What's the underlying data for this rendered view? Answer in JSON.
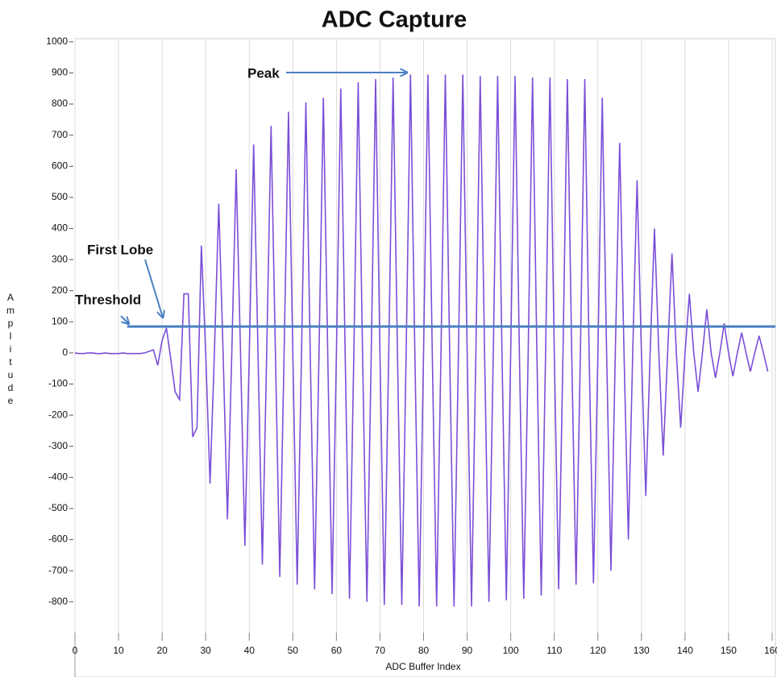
{
  "chart_data": {
    "type": "line",
    "title": "ADC Capture",
    "x_label": "ADC Buffer Index",
    "y_label": "Amplitude",
    "color": "#7b4fd8",
    "x": [
      0,
      1,
      2,
      3,
      4,
      5,
      6,
      7,
      8,
      9,
      10,
      11,
      12,
      13,
      14,
      15,
      16,
      17,
      18,
      19,
      20,
      21,
      22,
      23,
      24,
      25,
      26,
      27,
      28,
      29,
      30,
      31,
      32,
      33,
      34,
      35,
      36,
      37,
      38,
      39,
      40,
      41,
      42,
      43,
      44,
      45,
      46,
      47,
      48,
      49,
      50,
      51,
      52,
      53,
      54,
      55,
      56,
      57,
      58,
      59,
      60,
      61,
      62,
      63,
      64,
      65,
      66,
      67,
      68,
      69,
      70,
      71,
      72,
      73,
      74,
      75,
      76,
      77,
      78,
      79,
      80,
      81,
      82,
      83,
      84,
      85,
      86,
      87,
      88,
      89,
      90,
      91,
      92,
      93,
      94,
      95,
      96,
      97,
      98,
      99,
      100,
      101,
      102,
      103,
      104,
      105,
      106,
      107,
      108,
      109,
      110,
      111,
      112,
      113,
      114,
      115,
      116,
      117,
      118,
      119,
      120,
      121,
      122,
      123,
      124,
      125,
      126,
      127,
      128,
      129,
      130,
      131,
      132,
      133,
      134,
      135,
      136,
      137,
      138,
      139,
      140,
      141,
      142,
      143,
      144,
      145,
      146,
      147,
      148,
      149,
      150,
      151,
      152,
      153,
      154,
      155,
      156,
      157,
      158,
      159
    ],
    "values": [
      0,
      -2,
      -2,
      0,
      0,
      -2,
      -2,
      0,
      -2,
      -2,
      -2,
      0,
      -2,
      -2,
      -2,
      -2,
      0,
      5,
      10,
      -40,
      40,
      80,
      -20,
      -125,
      -150,
      190,
      190,
      -270,
      -240,
      345,
      0,
      -420,
      0,
      480,
      0,
      -535,
      0,
      590,
      0,
      -620,
      0,
      670,
      0,
      -680,
      0,
      730,
      0,
      -720,
      0,
      775,
      0,
      -745,
      0,
      805,
      0,
      -760,
      0,
      820,
      0,
      -775,
      0,
      850,
      0,
      -790,
      0,
      870,
      0,
      -800,
      0,
      880,
      0,
      -810,
      0,
      885,
      0,
      -810,
      0,
      895,
      0,
      -815,
      0,
      895,
      0,
      -815,
      0,
      895,
      0,
      -815,
      0,
      895,
      0,
      -815,
      0,
      890,
      0,
      -800,
      0,
      890,
      0,
      -795,
      0,
      890,
      0,
      -790,
      0,
      885,
      0,
      -780,
      0,
      885,
      0,
      -760,
      0,
      880,
      0,
      -745,
      0,
      880,
      0,
      -740,
      0,
      820,
      0,
      -700,
      0,
      675,
      0,
      -600,
      0,
      555,
      0,
      -460,
      0,
      400,
      0,
      -330,
      0,
      320,
      0,
      -240,
      0,
      190,
      0,
      -125,
      0,
      140,
      0,
      -80,
      0,
      95,
      0,
      -75,
      0,
      65,
      0,
      -60,
      0,
      55,
      0,
      -60
    ],
    "threshold": {
      "value": 85,
      "x_start": 12,
      "color": "#4a7fc1"
    },
    "annotations": [
      {
        "text": "Peak"
      },
      {
        "text": "First Lobe"
      },
      {
        "text": "Threshold"
      }
    ],
    "xlim": [
      0,
      160
    ],
    "xticks": [
      0,
      10,
      20,
      30,
      40,
      50,
      60,
      70,
      80,
      90,
      100,
      110,
      120,
      130,
      140,
      150,
      160
    ],
    "ylim": [
      -925,
      1010
    ],
    "yticks": [
      -800,
      -700,
      -600,
      -500,
      -400,
      -300,
      -200,
      -100,
      0,
      100,
      200,
      300,
      400,
      500,
      600,
      700,
      800,
      900,
      1000
    ],
    "grid": "x"
  }
}
